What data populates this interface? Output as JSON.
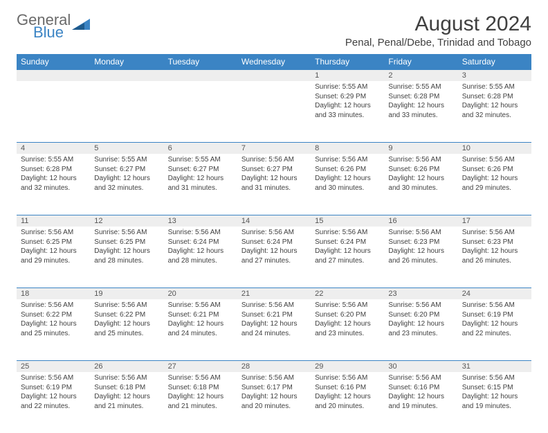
{
  "brand": {
    "line1": "General",
    "line2": "Blue"
  },
  "title": "August 2024",
  "location": "Penal, Penal/Debe, Trinidad and Tobago",
  "colors": {
    "header_bg": "#3b84c4",
    "header_text": "#ffffff",
    "daynum_bg": "#eeeeee",
    "daynum_text": "#555555",
    "body_text": "#404040",
    "border": "#3b84c4"
  },
  "days_of_week": [
    "Sunday",
    "Monday",
    "Tuesday",
    "Wednesday",
    "Thursday",
    "Friday",
    "Saturday"
  ],
  "weeks": [
    [
      null,
      null,
      null,
      null,
      {
        "n": "1",
        "sunrise": "5:55 AM",
        "sunset": "6:29 PM",
        "daylight": "12 hours and 33 minutes."
      },
      {
        "n": "2",
        "sunrise": "5:55 AM",
        "sunset": "6:28 PM",
        "daylight": "12 hours and 33 minutes."
      },
      {
        "n": "3",
        "sunrise": "5:55 AM",
        "sunset": "6:28 PM",
        "daylight": "12 hours and 32 minutes."
      }
    ],
    [
      {
        "n": "4",
        "sunrise": "5:55 AM",
        "sunset": "6:28 PM",
        "daylight": "12 hours and 32 minutes."
      },
      {
        "n": "5",
        "sunrise": "5:55 AM",
        "sunset": "6:27 PM",
        "daylight": "12 hours and 32 minutes."
      },
      {
        "n": "6",
        "sunrise": "5:55 AM",
        "sunset": "6:27 PM",
        "daylight": "12 hours and 31 minutes."
      },
      {
        "n": "7",
        "sunrise": "5:56 AM",
        "sunset": "6:27 PM",
        "daylight": "12 hours and 31 minutes."
      },
      {
        "n": "8",
        "sunrise": "5:56 AM",
        "sunset": "6:26 PM",
        "daylight": "12 hours and 30 minutes."
      },
      {
        "n": "9",
        "sunrise": "5:56 AM",
        "sunset": "6:26 PM",
        "daylight": "12 hours and 30 minutes."
      },
      {
        "n": "10",
        "sunrise": "5:56 AM",
        "sunset": "6:26 PM",
        "daylight": "12 hours and 29 minutes."
      }
    ],
    [
      {
        "n": "11",
        "sunrise": "5:56 AM",
        "sunset": "6:25 PM",
        "daylight": "12 hours and 29 minutes."
      },
      {
        "n": "12",
        "sunrise": "5:56 AM",
        "sunset": "6:25 PM",
        "daylight": "12 hours and 28 minutes."
      },
      {
        "n": "13",
        "sunrise": "5:56 AM",
        "sunset": "6:24 PM",
        "daylight": "12 hours and 28 minutes."
      },
      {
        "n": "14",
        "sunrise": "5:56 AM",
        "sunset": "6:24 PM",
        "daylight": "12 hours and 27 minutes."
      },
      {
        "n": "15",
        "sunrise": "5:56 AM",
        "sunset": "6:24 PM",
        "daylight": "12 hours and 27 minutes."
      },
      {
        "n": "16",
        "sunrise": "5:56 AM",
        "sunset": "6:23 PM",
        "daylight": "12 hours and 26 minutes."
      },
      {
        "n": "17",
        "sunrise": "5:56 AM",
        "sunset": "6:23 PM",
        "daylight": "12 hours and 26 minutes."
      }
    ],
    [
      {
        "n": "18",
        "sunrise": "5:56 AM",
        "sunset": "6:22 PM",
        "daylight": "12 hours and 25 minutes."
      },
      {
        "n": "19",
        "sunrise": "5:56 AM",
        "sunset": "6:22 PM",
        "daylight": "12 hours and 25 minutes."
      },
      {
        "n": "20",
        "sunrise": "5:56 AM",
        "sunset": "6:21 PM",
        "daylight": "12 hours and 24 minutes."
      },
      {
        "n": "21",
        "sunrise": "5:56 AM",
        "sunset": "6:21 PM",
        "daylight": "12 hours and 24 minutes."
      },
      {
        "n": "22",
        "sunrise": "5:56 AM",
        "sunset": "6:20 PM",
        "daylight": "12 hours and 23 minutes."
      },
      {
        "n": "23",
        "sunrise": "5:56 AM",
        "sunset": "6:20 PM",
        "daylight": "12 hours and 23 minutes."
      },
      {
        "n": "24",
        "sunrise": "5:56 AM",
        "sunset": "6:19 PM",
        "daylight": "12 hours and 22 minutes."
      }
    ],
    [
      {
        "n": "25",
        "sunrise": "5:56 AM",
        "sunset": "6:19 PM",
        "daylight": "12 hours and 22 minutes."
      },
      {
        "n": "26",
        "sunrise": "5:56 AM",
        "sunset": "6:18 PM",
        "daylight": "12 hours and 21 minutes."
      },
      {
        "n": "27",
        "sunrise": "5:56 AM",
        "sunset": "6:18 PM",
        "daylight": "12 hours and 21 minutes."
      },
      {
        "n": "28",
        "sunrise": "5:56 AM",
        "sunset": "6:17 PM",
        "daylight": "12 hours and 20 minutes."
      },
      {
        "n": "29",
        "sunrise": "5:56 AM",
        "sunset": "6:16 PM",
        "daylight": "12 hours and 20 minutes."
      },
      {
        "n": "30",
        "sunrise": "5:56 AM",
        "sunset": "6:16 PM",
        "daylight": "12 hours and 19 minutes."
      },
      {
        "n": "31",
        "sunrise": "5:56 AM",
        "sunset": "6:15 PM",
        "daylight": "12 hours and 19 minutes."
      }
    ]
  ],
  "labels": {
    "sunrise": "Sunrise:",
    "sunset": "Sunset:",
    "daylight": "Daylight:"
  }
}
